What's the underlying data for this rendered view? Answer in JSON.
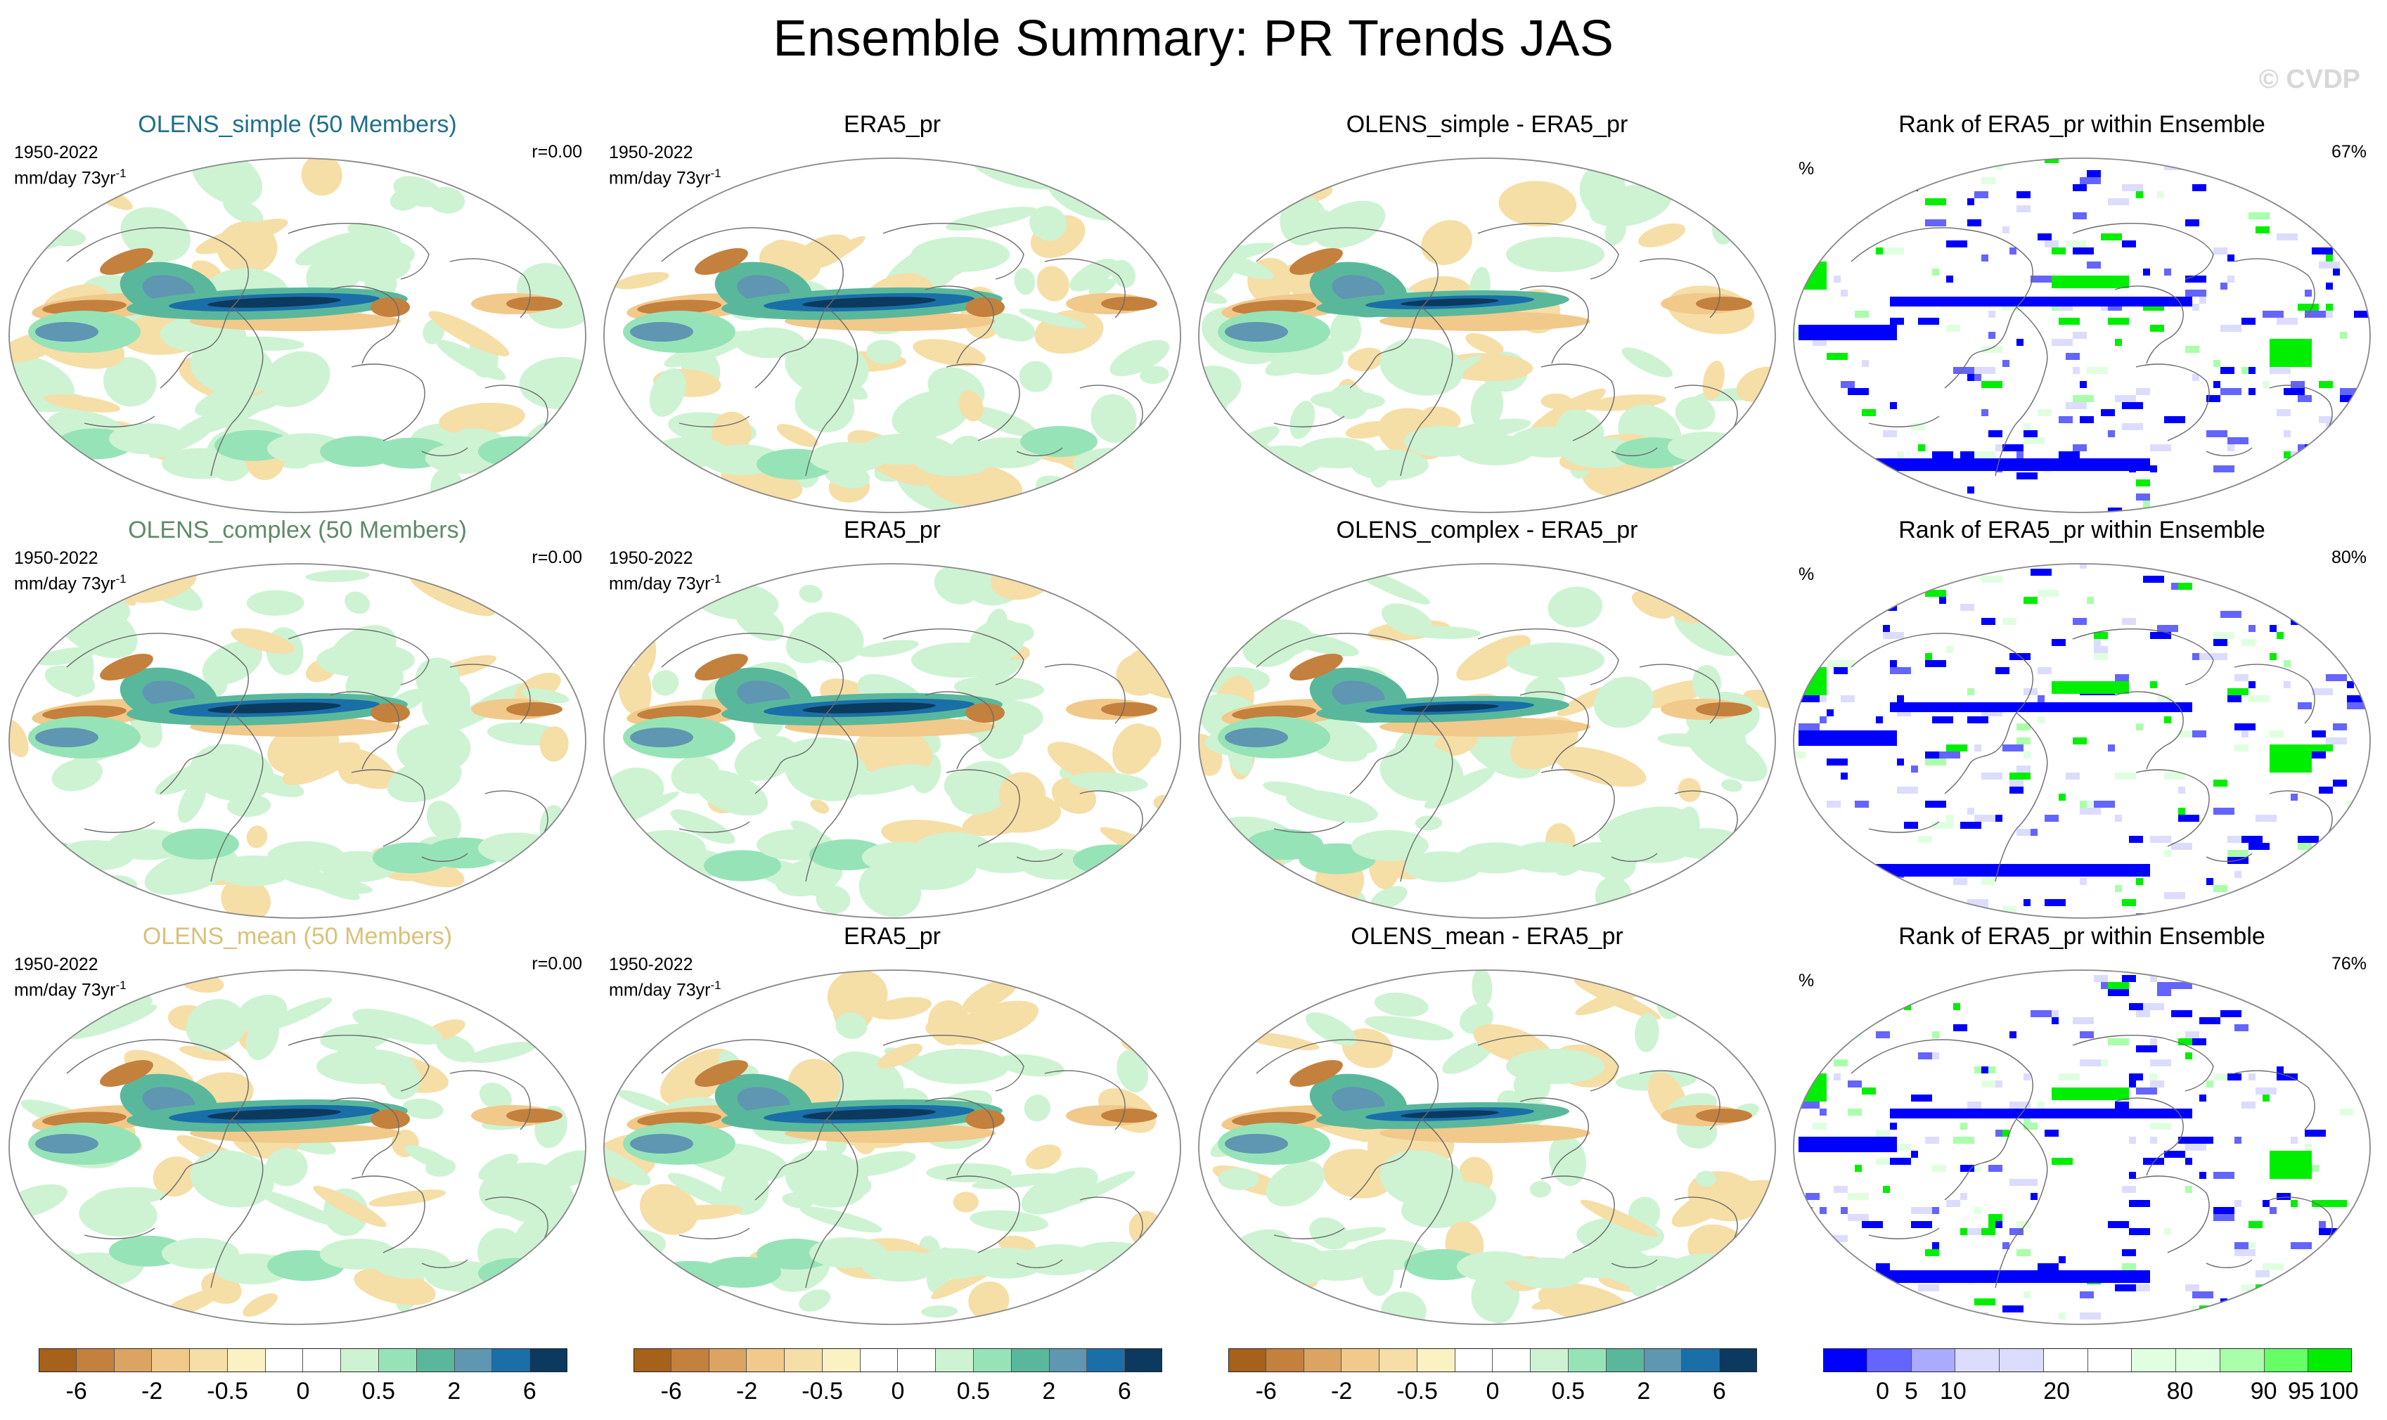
{
  "title": "Ensemble Summary: PR Trends JAS",
  "watermark": "© CVDP",
  "rows": [
    {
      "model": "OLENS_simple (50 Members)",
      "model_color": "#1f6f8b",
      "period": "1950-2022",
      "units_text": "mm/day 73yr",
      "units_sup": "-1",
      "corr": "r=0.00",
      "obs_title": "ERA5_pr",
      "diff_title": "OLENS_simple - ERA5_pr",
      "rank_title": "Rank of ERA5_pr within Ensemble",
      "rank_unit": "%",
      "rank_pct": "67%"
    },
    {
      "model": "OLENS_complex (50 Members)",
      "model_color": "#5f8a6a",
      "period": "1950-2022",
      "units_text": "mm/day 73yr",
      "units_sup": "-1",
      "corr": "r=0.00",
      "obs_title": "ERA5_pr",
      "diff_title": "OLENS_complex - ERA5_pr",
      "rank_title": "Rank of ERA5_pr within Ensemble",
      "rank_unit": "%",
      "rank_pct": "80%"
    },
    {
      "model": "OLENS_mean (50 Members)",
      "model_color": "#d8c27a",
      "period": "1950-2022",
      "units_text": "mm/day 73yr",
      "units_sup": "-1",
      "corr": "r=0.00",
      "obs_title": "ERA5_pr",
      "diff_title": "OLENS_mean - ERA5_pr",
      "rank_title": "Rank of ERA5_pr within Ensemble",
      "rank_unit": "%",
      "rank_pct": "76%"
    }
  ],
  "chart_data": {
    "type": "heatmap",
    "title": "Ensemble Summary: PR Trends JAS",
    "trend_colorbar": {
      "colors": [
        "#a6611a",
        "#c4803d",
        "#dba463",
        "#f1c98a",
        "#f6dea7",
        "#fbf2c4",
        "#ffffff",
        "#ffffff",
        "#cdf3d3",
        "#97e3b8",
        "#59b89c",
        "#5f96b2",
        "#1b6fa8",
        "#0b3a5e"
      ],
      "labels": [
        "-6",
        "-2",
        "-0.5",
        "0",
        "0.5",
        "2",
        "6"
      ]
    },
    "rank_colorbar": {
      "colors": [
        "#0000ff",
        "#6464ff",
        "#aaaaff",
        "#dcdcff",
        "#dcdcff",
        "#ffffff",
        "#ffffff",
        "#e0ffe0",
        "#e0ffe0",
        "#aaffaa",
        "#66ff66",
        "#00ee00"
      ],
      "labels": [
        "0",
        "5",
        "10",
        "20",
        "80",
        "90",
        "95",
        "100"
      ]
    }
  }
}
